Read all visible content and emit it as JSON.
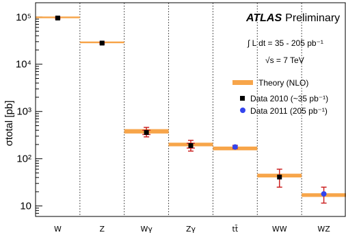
{
  "chart_data": {
    "type": "scatter",
    "ylabel": "σtotal [pb]",
    "yscale": "log",
    "ylim": [
      6,
      200000
    ],
    "yticks": [
      {
        "value": 10,
        "label": "10"
      },
      {
        "value": 100,
        "label": "10²"
      },
      {
        "value": 1000,
        "label": "10³"
      },
      {
        "value": 10000,
        "label": "10⁴"
      },
      {
        "value": 100000,
        "label": "10⁵"
      }
    ],
    "categories": [
      "W",
      "Z",
      "Wγ",
      "Zγ",
      "tt̄",
      "WW",
      "WZ"
    ],
    "grid": "vertical dashed separators",
    "experiment": {
      "bold": "ATLAS",
      "rest": "Preliminary"
    },
    "lumi_text": "∫ L dt = 35 - 205 pb⁻¹",
    "energy_text": "√s = 7 TeV",
    "legend_placement": "right",
    "series": [
      {
        "name": "Theory (NLO)",
        "color": "#f7a54a",
        "values": [
          98000,
          29000,
          380,
          200,
          165,
          44,
          17
        ],
        "band_low": [
          94000,
          27800,
          340,
          183,
          150,
          40,
          15.5
        ],
        "band_high": [
          102000,
          30200,
          420,
          218,
          180,
          48,
          18.5
        ]
      },
      {
        "name": "Data 2010  (~35 pb⁻¹)",
        "color": "#000000",
        "values": [
          95000,
          28000,
          360,
          190,
          null,
          41,
          null
        ],
        "err_low": [
          91000,
          26800,
          290,
          145,
          null,
          25,
          null
        ],
        "err_high": [
          99000,
          29200,
          460,
          245,
          null,
          60,
          null
        ],
        "syst_low": [
          null,
          null,
          325,
          168,
          null,
          null,
          null
        ],
        "syst_high": [
          null,
          null,
          400,
          212,
          null,
          null,
          null
        ]
      },
      {
        "name": "Data 2011  (205 pb⁻¹)",
        "color": "#3344ee",
        "values": [
          null,
          null,
          null,
          null,
          177,
          null,
          18
        ],
        "err_low": [
          null,
          null,
          null,
          null,
          163,
          null,
          11.5
        ],
        "err_high": [
          null,
          null,
          null,
          null,
          192,
          null,
          25
        ]
      }
    ]
  }
}
